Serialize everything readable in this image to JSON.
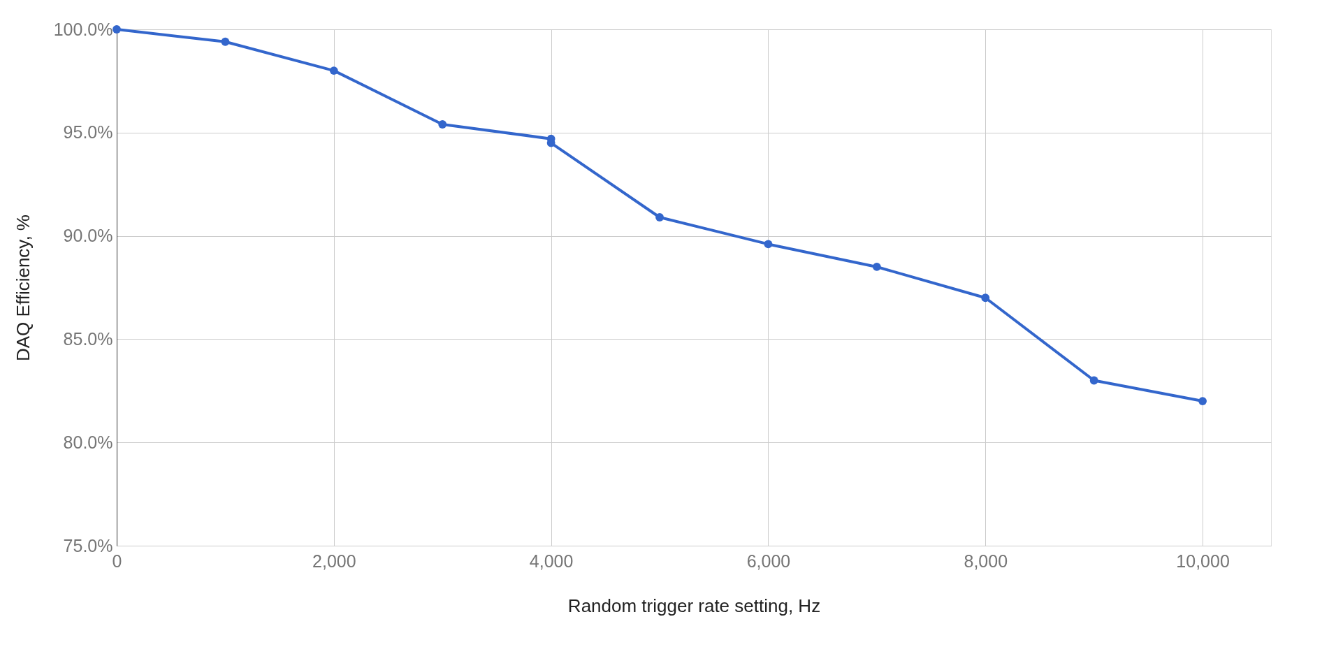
{
  "chart_data": {
    "type": "line",
    "xlabel": "Random trigger rate setting, Hz",
    "ylabel": "DAQ Efficiency, %",
    "x": [
      0,
      1000,
      2000,
      3000,
      4000,
      4000,
      5000,
      6000,
      7000,
      8000,
      9000,
      10000
    ],
    "series": [
      {
        "color": "#3366cc",
        "values": [
          100.0,
          99.4,
          98.0,
          95.4,
          94.7,
          94.5,
          90.9,
          89.6,
          88.5,
          87.0,
          83.0,
          82.0
        ]
      }
    ],
    "xlim": [
      0,
      10630
    ],
    "xticks": [
      {
        "value": 0,
        "label": "0"
      },
      {
        "value": 2000,
        "label": "2,000"
      },
      {
        "value": 4000,
        "label": "4,000"
      },
      {
        "value": 6000,
        "label": "6,000"
      },
      {
        "value": 8000,
        "label": "8,000"
      },
      {
        "value": 10000,
        "label": "10,000"
      }
    ],
    "ylim": [
      75,
      100
    ],
    "yticks": [
      {
        "value": 75,
        "label": "75.0%"
      },
      {
        "value": 80,
        "label": "80.0%"
      },
      {
        "value": 85,
        "label": "85.0%"
      },
      {
        "value": 90,
        "label": "90.0%"
      },
      {
        "value": 95,
        "label": "95.0%"
      },
      {
        "value": 100,
        "label": "100.0%"
      }
    ],
    "grid": true,
    "marker": "circle",
    "line_style": "solid"
  }
}
